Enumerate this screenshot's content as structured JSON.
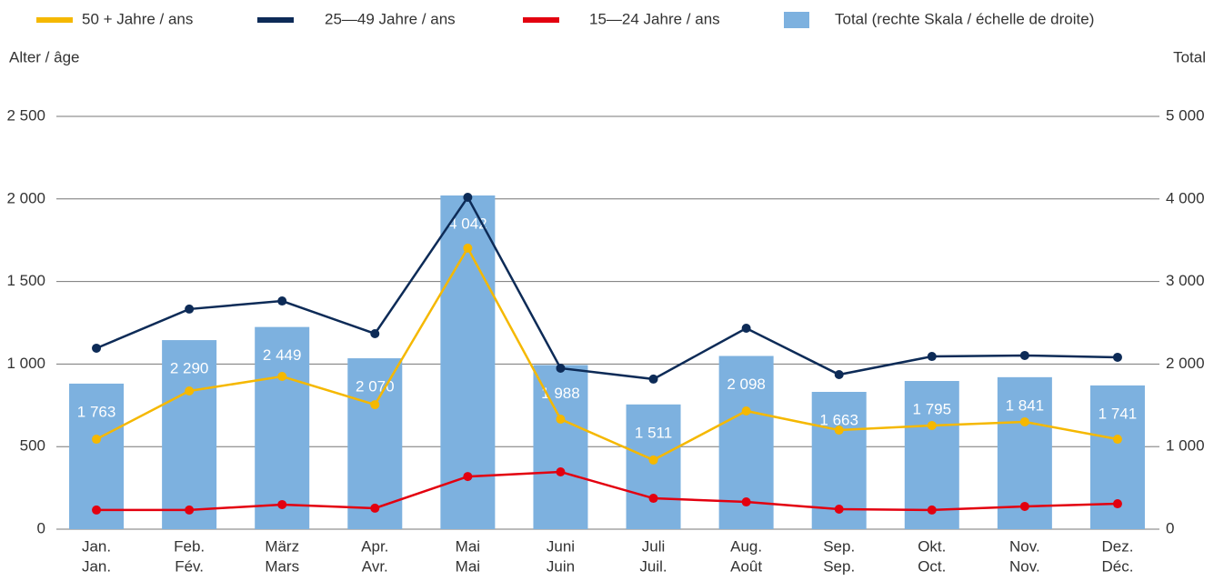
{
  "chart_data": {
    "type": "bar-line",
    "y_label": "Alter / âge",
    "y2_label": "Total",
    "categories": [
      [
        "Jan.",
        "Jan."
      ],
      [
        "Feb.",
        "Fév."
      ],
      [
        "März",
        "Mars"
      ],
      [
        "Apr.",
        "Avr."
      ],
      [
        "Mai",
        "Mai"
      ],
      [
        "Juni",
        "Juin"
      ],
      [
        "Juli",
        "Juil."
      ],
      [
        "Aug.",
        "Août"
      ],
      [
        "Sep.",
        "Sep."
      ],
      [
        "Okt.",
        "Oct."
      ],
      [
        "Nov.",
        "Nov."
      ],
      [
        "Dez.",
        "Déc."
      ]
    ],
    "series": [
      {
        "name": "50 + Jahre / ans",
        "type": "line",
        "color": "#f5b800",
        "values": [
          545,
          837,
          925,
          754,
          1702,
          666,
          419,
          716,
          600,
          628,
          650,
          545
        ]
      },
      {
        "name": "25—49 Jahre / ans",
        "type": "line",
        "color": "#0d2b57",
        "values": [
          1096,
          1333,
          1382,
          1184,
          2010,
          975,
          909,
          1217,
          936,
          1046,
          1052,
          1041
        ]
      },
      {
        "name": "15—24 Jahre / ans",
        "type": "line",
        "color": "#e3000f",
        "values": [
          116,
          116,
          149,
          127,
          319,
          347,
          187,
          165,
          121,
          116,
          138,
          154
        ]
      },
      {
        "name": "Total (rechte Skala / échelle de droite)",
        "type": "bar",
        "axis": "y2",
        "color": "#7db1df",
        "values": [
          1763,
          2290,
          2449,
          2070,
          4042,
          1988,
          1511,
          2098,
          1663,
          1795,
          1841,
          1741
        ],
        "value_labels": [
          "1 763",
          "2 290",
          "2 449",
          "2 070",
          "4 042",
          "1 988",
          "1 511",
          "2 098",
          "1 663",
          "1 795",
          "1 841",
          "1 741"
        ]
      }
    ],
    "ylim": [
      0,
      2500
    ],
    "yticks": [
      0,
      500,
      {
        "value": 1000,
        "label": "1 000"
      },
      {
        "value": 1500,
        "label": "1 500"
      },
      {
        "value": 2000,
        "label": "2 000"
      },
      {
        "value": 2500,
        "label": "2 500"
      }
    ],
    "y2lim": [
      0,
      5000
    ],
    "y2ticks": [
      0,
      {
        "value": 1000,
        "label": "1 000"
      },
      {
        "value": 2000,
        "label": "2 000"
      },
      {
        "value": 3000,
        "label": "3 000"
      },
      {
        "value": 4000,
        "label": "4 000"
      },
      {
        "value": 5000,
        "label": "5 000"
      }
    ],
    "grid": true,
    "legend": "top"
  }
}
